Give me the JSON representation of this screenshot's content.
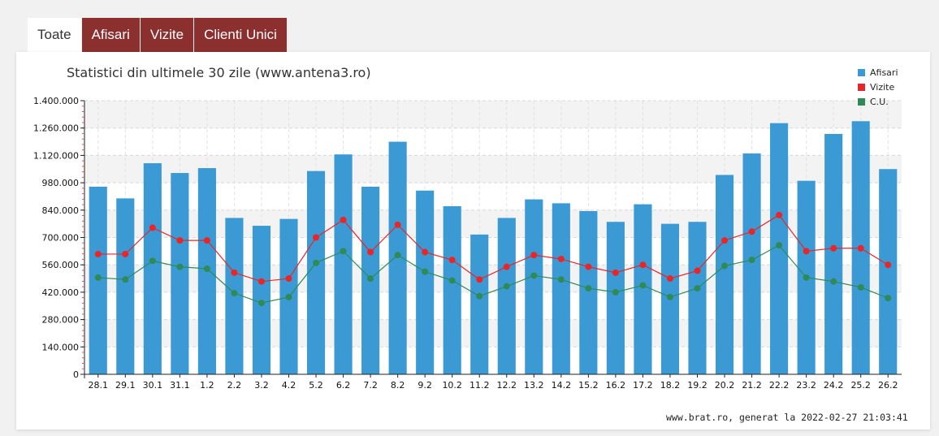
{
  "tabs": [
    "Toate",
    "Afisari",
    "Vizite",
    "Clienti Unici"
  ],
  "active_tab": 0,
  "colors": {
    "tab_bg": "#8b2f2f",
    "afisari": "#3b9ad4",
    "vizite": "#e8262a",
    "cu": "#2e8b57"
  },
  "footer": "www.brat.ro, generat la 2022-02-27 21:03:41",
  "chart_data": {
    "type": "bar",
    "title": "Statistici din ultimele 30 zile (www.antena3.ro)",
    "categories": [
      "28.1",
      "29.1",
      "30.1",
      "31.1",
      "1.2",
      "2.2",
      "3.2",
      "4.2",
      "5.2",
      "6.2",
      "7.2",
      "8.2",
      "9.2",
      "10.2",
      "11.2",
      "12.2",
      "13.2",
      "14.2",
      "15.2",
      "16.2",
      "17.2",
      "18.2",
      "19.2",
      "20.2",
      "21.2",
      "22.2",
      "23.2",
      "24.2",
      "25.2",
      "26.2"
    ],
    "ylim": [
      0,
      1400000
    ],
    "yticks": [
      0,
      140000,
      280000,
      420000,
      560000,
      700000,
      840000,
      980000,
      1120000,
      1260000,
      1400000
    ],
    "ytick_labels": [
      "0",
      "140.000",
      "280.000",
      "420.000",
      "560.000",
      "700.000",
      "840.000",
      "980.000",
      "1.120.000",
      "1.260.000",
      "1.400.000"
    ],
    "grid": true,
    "legend_position": "top-right",
    "series": [
      {
        "name": "Afisari",
        "type": "bar",
        "values": [
          960000,
          900000,
          1080000,
          1030000,
          1055000,
          800000,
          760000,
          795000,
          1040000,
          1125000,
          960000,
          1190000,
          940000,
          860000,
          715000,
          800000,
          895000,
          875000,
          835000,
          780000,
          870000,
          770000,
          780000,
          1020000,
          1130000,
          1285000,
          990000,
          1230000,
          1295000,
          1050000
        ]
      },
      {
        "name": "Vizite",
        "type": "line",
        "values": [
          615000,
          615000,
          750000,
          685000,
          685000,
          520000,
          475000,
          490000,
          700000,
          790000,
          625000,
          765000,
          625000,
          585000,
          485000,
          550000,
          610000,
          590000,
          550000,
          520000,
          560000,
          490000,
          530000,
          685000,
          730000,
          815000,
          630000,
          645000,
          645000,
          560000
        ]
      },
      {
        "name": "C.U.",
        "type": "line",
        "values": [
          495000,
          485000,
          580000,
          550000,
          540000,
          415000,
          365000,
          395000,
          570000,
          630000,
          490000,
          610000,
          525000,
          480000,
          400000,
          450000,
          505000,
          485000,
          440000,
          420000,
          455000,
          395000,
          440000,
          555000,
          585000,
          660000,
          495000,
          475000,
          445000,
          390000
        ]
      }
    ]
  }
}
